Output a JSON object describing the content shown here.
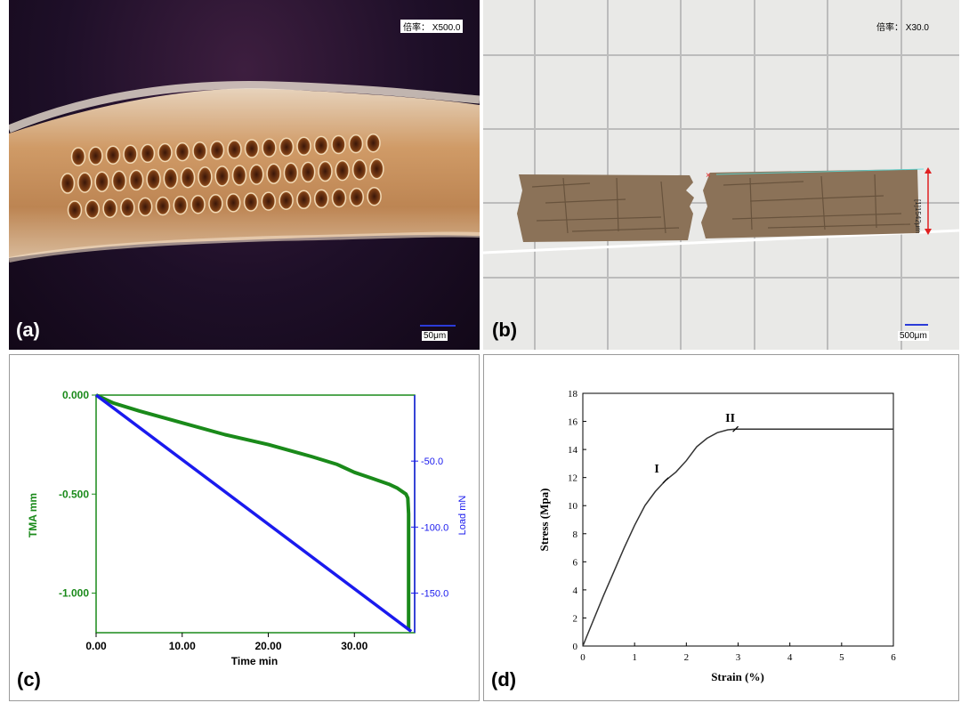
{
  "panels": {
    "a": {
      "label": "(a)",
      "magnification": "倍率： X500.0",
      "scale_bar": "50μm"
    },
    "b": {
      "label": "(b)",
      "magnification": "倍率： X30.0",
      "scale_bar": "500μm",
      "measurement": "[1]1542μm"
    },
    "c": {
      "label": "(c)"
    },
    "d": {
      "label": "(d)"
    }
  },
  "colors": {
    "tma": "#1a8a1a",
    "load": "#1a1aee",
    "stress": "#333333"
  },
  "chart_data": [
    {
      "type": "line",
      "panel": "c",
      "xlabel": "Time min",
      "ylabel": "TMA mm",
      "y2label": "Load mN",
      "xlim": [
        0,
        37
      ],
      "ylim": [
        -1.2,
        0
      ],
      "y2lim": [
        -180,
        0
      ],
      "x_ticks": [
        {
          "value": 0,
          "label": "0.00"
        },
        {
          "value": 10,
          "label": "10.00"
        },
        {
          "value": 20,
          "label": "20.00"
        },
        {
          "value": 30,
          "label": "30.00"
        }
      ],
      "y_ticks": [
        {
          "value": 0,
          "label": "0.000"
        },
        {
          "value": -0.5,
          "label": "-0.500"
        },
        {
          "value": -1.0,
          "label": "-1.000"
        }
      ],
      "y2_ticks": [
        {
          "value": -50,
          "label": "-50.0"
        },
        {
          "value": -100,
          "label": "-100.0"
        },
        {
          "value": -150,
          "label": "-150.0"
        }
      ],
      "series": [
        {
          "axis": "left",
          "x": [
            0,
            2,
            5,
            10,
            15,
            20,
            25,
            28,
            30,
            32,
            34,
            35,
            36,
            36.2,
            36.3,
            36.3
          ],
          "y": [
            0,
            -0.04,
            -0.08,
            -0.14,
            -0.2,
            -0.25,
            -0.31,
            -0.35,
            -0.39,
            -0.42,
            -0.45,
            -0.47,
            -0.5,
            -0.52,
            -0.6,
            -1.18
          ]
        },
        {
          "axis": "right",
          "x": [
            0,
            36.6
          ],
          "y": [
            0,
            -179
          ]
        }
      ]
    },
    {
      "type": "line",
      "panel": "d",
      "xlabel": "Strain (%)",
      "ylabel": "Stress (Mpa)",
      "xlim": [
        0,
        6
      ],
      "ylim": [
        0,
        18
      ],
      "x_ticks": [
        0,
        1,
        2,
        3,
        4,
        5,
        6
      ],
      "y_ticks": [
        0,
        2,
        4,
        6,
        8,
        10,
        12,
        14,
        16,
        18
      ],
      "series": [
        {
          "x": [
            0,
            0.2,
            0.4,
            0.6,
            0.8,
            1.0,
            1.2,
            1.4,
            1.6,
            1.8,
            2.0,
            2.2,
            2.4,
            2.6,
            2.8,
            2.95,
            3.0,
            4.0,
            5.0,
            6.0
          ],
          "y": [
            0,
            1.8,
            3.6,
            5.3,
            7.0,
            8.6,
            10.0,
            11.0,
            11.8,
            12.4,
            13.2,
            14.2,
            14.8,
            15.2,
            15.4,
            15.45,
            15.45,
            15.45,
            15.45,
            15.45
          ]
        }
      ],
      "annotations": [
        {
          "text": "I",
          "x": 1.6,
          "y": 11.8
        },
        {
          "text": "II",
          "x": 2.95,
          "y": 15.45
        }
      ]
    }
  ]
}
